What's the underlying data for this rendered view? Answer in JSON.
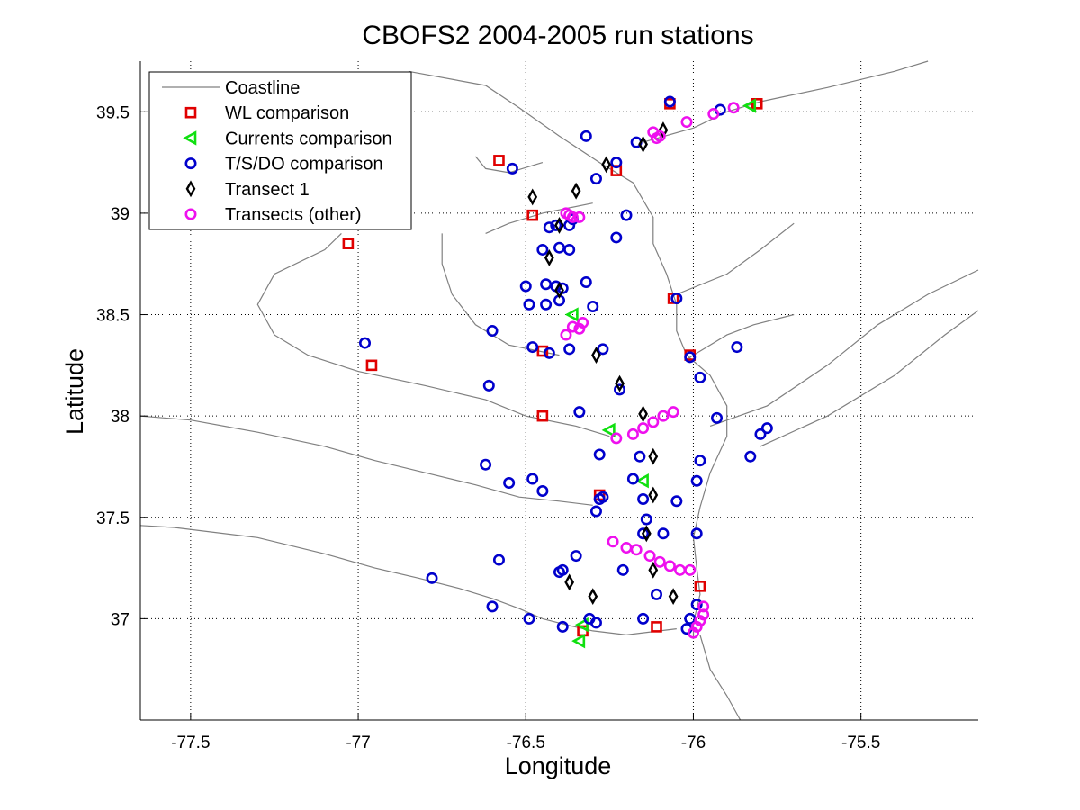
{
  "chart_data": {
    "type": "scatter",
    "title": "CBOFS2 2004-2005 run stations",
    "xlabel": "Longitude",
    "ylabel": "Latitude",
    "xlim": [
      -77.65,
      -75.15
    ],
    "ylim": [
      36.5,
      39.75
    ],
    "xticks": [
      -77.5,
      -77,
      -76.5,
      -76,
      -75.5
    ],
    "xtick_labels": [
      "-77.5",
      "-77",
      "-76.5",
      "-76",
      "-75.5"
    ],
    "yticks": [
      37,
      37.5,
      38,
      38.5,
      39,
      39.5
    ],
    "ytick_labels": [
      "37",
      "37.5",
      "38",
      "38.5",
      "39",
      "39.5"
    ],
    "grid": true,
    "grid_style": "dotted",
    "legend_position": "top-left",
    "legend": [
      "Coastline",
      "WL comparison",
      "Currents comparison",
      "T/S/DO comparison",
      "Transect 1",
      "Transects (other)"
    ],
    "series": [
      {
        "name": "Coastline",
        "marker": "line",
        "color": "#808080",
        "polylines": [
          [
            [
              -76.85,
              39.7
            ],
            [
              -76.62,
              39.63
            ],
            [
              -76.52,
              39.52
            ],
            [
              -76.4,
              39.38
            ],
            [
              -76.28,
              39.25
            ],
            [
              -76.18,
              39.15
            ],
            [
              -76.12,
              38.98
            ],
            [
              -76.12,
              38.85
            ],
            [
              -76.08,
              38.7
            ],
            [
              -76.05,
              38.55
            ],
            [
              -76.05,
              38.42
            ],
            [
              -76.02,
              38.3
            ],
            [
              -75.95,
              38.2
            ],
            [
              -75.9,
              38.05
            ],
            [
              -75.9,
              37.9
            ],
            [
              -75.95,
              37.72
            ],
            [
              -75.98,
              37.55
            ],
            [
              -76.0,
              37.4
            ],
            [
              -75.99,
              37.25
            ],
            [
              -75.98,
              37.12
            ],
            [
              -76.0,
              36.98
            ],
            [
              -76.0,
              36.9
            ]
          ],
          [
            [
              -75.98,
              36.92
            ],
            [
              -75.95,
              36.75
            ],
            [
              -75.9,
              36.62
            ],
            [
              -75.86,
              36.5
            ]
          ],
          [
            [
              -76.05,
              36.95
            ],
            [
              -76.2,
              36.92
            ],
            [
              -76.3,
              36.94
            ],
            [
              -76.38,
              36.97
            ],
            [
              -76.45,
              37.0
            ],
            [
              -76.52,
              37.05
            ],
            [
              -76.6,
              37.1
            ],
            [
              -76.7,
              37.15
            ],
            [
              -76.82,
              37.2
            ],
            [
              -76.95,
              37.25
            ],
            [
              -77.1,
              37.32
            ],
            [
              -77.3,
              37.4
            ],
            [
              -77.55,
              37.45
            ],
            [
              -77.65,
              37.46
            ]
          ],
          [
            [
              -76.3,
              37.56
            ],
            [
              -76.4,
              37.58
            ],
            [
              -76.52,
              37.6
            ],
            [
              -76.65,
              37.66
            ],
            [
              -76.8,
              37.72
            ],
            [
              -76.95,
              37.78
            ],
            [
              -77.1,
              37.85
            ],
            [
              -77.3,
              37.92
            ],
            [
              -77.5,
              37.98
            ],
            [
              -77.65,
              38.0
            ]
          ],
          [
            [
              -76.25,
              37.9
            ],
            [
              -76.35,
              37.95
            ],
            [
              -76.5,
              38.0
            ],
            [
              -76.62,
              38.08
            ],
            [
              -76.8,
              38.15
            ],
            [
              -77.0,
              38.22
            ],
            [
              -77.15,
              38.3
            ],
            [
              -77.25,
              38.4
            ],
            [
              -77.3,
              38.55
            ],
            [
              -77.25,
              38.7
            ],
            [
              -77.1,
              38.82
            ],
            [
              -77.05,
              38.9
            ]
          ],
          [
            [
              -76.4,
              38.3
            ],
            [
              -76.55,
              38.35
            ],
            [
              -76.65,
              38.45
            ],
            [
              -76.72,
              38.6
            ],
            [
              -76.75,
              38.75
            ],
            [
              -76.75,
              38.9
            ]
          ],
          [
            [
              -76.3,
              39.05
            ],
            [
              -76.45,
              39.0
            ],
            [
              -76.55,
              38.95
            ],
            [
              -76.62,
              38.9
            ]
          ],
          [
            [
              -76.45,
              39.25
            ],
            [
              -76.55,
              39.2
            ],
            [
              -76.62,
              39.22
            ],
            [
              -76.65,
              39.28
            ]
          ],
          [
            [
              -76.05,
              38.6
            ],
            [
              -75.9,
              38.7
            ],
            [
              -75.8,
              38.82
            ],
            [
              -75.7,
              38.95
            ]
          ],
          [
            [
              -76.02,
              38.28
            ],
            [
              -75.9,
              38.4
            ],
            [
              -75.82,
              38.45
            ],
            [
              -75.7,
              38.5
            ]
          ],
          [
            [
              -76.15,
              39.35
            ],
            [
              -76.0,
              39.42
            ],
            [
              -75.9,
              39.5
            ],
            [
              -75.8,
              39.55
            ],
            [
              -75.6,
              39.62
            ],
            [
              -75.4,
              39.7
            ],
            [
              -75.3,
              39.75
            ]
          ],
          [
            [
              -75.95,
              37.95
            ],
            [
              -75.78,
              38.05
            ],
            [
              -75.6,
              38.25
            ],
            [
              -75.45,
              38.45
            ],
            [
              -75.3,
              38.6
            ],
            [
              -75.15,
              38.72
            ]
          ],
          [
            [
              -75.8,
              37.85
            ],
            [
              -75.6,
              38.0
            ],
            [
              -75.4,
              38.2
            ],
            [
              -75.25,
              38.4
            ],
            [
              -75.15,
              38.52
            ]
          ]
        ]
      },
      {
        "name": "WL comparison",
        "marker": "square",
        "color": "#e00000",
        "points": [
          [
            -77.03,
            38.85
          ],
          [
            -76.96,
            38.25
          ],
          [
            -76.58,
            39.26
          ],
          [
            -76.48,
            38.99
          ],
          [
            -76.45,
            38.32
          ],
          [
            -76.45,
            38.0
          ],
          [
            -76.28,
            37.61
          ],
          [
            -76.33,
            36.94
          ],
          [
            -76.23,
            39.21
          ],
          [
            -76.07,
            39.54
          ],
          [
            -76.06,
            38.58
          ],
          [
            -76.01,
            38.3
          ],
          [
            -75.98,
            37.16
          ],
          [
            -76.11,
            36.96
          ],
          [
            -75.81,
            39.54
          ]
        ]
      },
      {
        "name": "Currents comparison",
        "marker": "triangle-left",
        "color": "#10e010",
        "points": [
          [
            -75.83,
            39.53
          ],
          [
            -76.36,
            38.5
          ],
          [
            -76.25,
            37.93
          ],
          [
            -76.15,
            37.68
          ],
          [
            -76.33,
            36.97
          ],
          [
            -76.34,
            36.89
          ]
        ]
      },
      {
        "name": "T/S/DO comparison",
        "marker": "circle",
        "color": "#0000cc",
        "points": [
          [
            -76.07,
            39.55
          ],
          [
            -75.92,
            39.51
          ],
          [
            -76.32,
            39.38
          ],
          [
            -76.17,
            39.35
          ],
          [
            -76.54,
            39.22
          ],
          [
            -76.29,
            39.17
          ],
          [
            -76.23,
            39.25
          ],
          [
            -76.41,
            38.94
          ],
          [
            -76.43,
            38.93
          ],
          [
            -76.36,
            38.97
          ],
          [
            -76.37,
            38.94
          ],
          [
            -76.2,
            38.99
          ],
          [
            -76.45,
            38.82
          ],
          [
            -76.4,
            38.83
          ],
          [
            -76.37,
            38.82
          ],
          [
            -76.23,
            38.88
          ],
          [
            -76.5,
            38.64
          ],
          [
            -76.44,
            38.65
          ],
          [
            -76.41,
            38.64
          ],
          [
            -76.39,
            38.63
          ],
          [
            -76.32,
            38.66
          ],
          [
            -76.49,
            38.55
          ],
          [
            -76.44,
            38.55
          ],
          [
            -76.4,
            38.57
          ],
          [
            -76.3,
            38.54
          ],
          [
            -76.05,
            38.58
          ],
          [
            -76.6,
            38.42
          ],
          [
            -76.48,
            38.34
          ],
          [
            -76.43,
            38.31
          ],
          [
            -76.37,
            38.33
          ],
          [
            -76.27,
            38.33
          ],
          [
            -76.98,
            38.36
          ],
          [
            -76.61,
            38.15
          ],
          [
            -76.22,
            38.13
          ],
          [
            -76.01,
            38.29
          ],
          [
            -75.98,
            38.19
          ],
          [
            -75.87,
            38.34
          ],
          [
            -76.34,
            38.02
          ],
          [
            -75.93,
            37.99
          ],
          [
            -75.78,
            37.94
          ],
          [
            -75.8,
            37.91
          ],
          [
            -76.62,
            37.76
          ],
          [
            -76.55,
            37.67
          ],
          [
            -76.48,
            37.69
          ],
          [
            -76.45,
            37.63
          ],
          [
            -76.28,
            37.81
          ],
          [
            -76.28,
            37.59
          ],
          [
            -76.27,
            37.6
          ],
          [
            -76.29,
            37.53
          ],
          [
            -76.18,
            37.69
          ],
          [
            -76.16,
            37.8
          ],
          [
            -76.15,
            37.59
          ],
          [
            -76.14,
            37.49
          ],
          [
            -76.05,
            37.58
          ],
          [
            -75.98,
            37.78
          ],
          [
            -75.99,
            37.68
          ],
          [
            -75.83,
            37.8
          ],
          [
            -76.15,
            37.42
          ],
          [
            -76.09,
            37.42
          ],
          [
            -75.99,
            37.42
          ],
          [
            -76.35,
            37.31
          ],
          [
            -76.4,
            37.23
          ],
          [
            -76.39,
            37.24
          ],
          [
            -76.21,
            37.24
          ],
          [
            -76.58,
            37.29
          ],
          [
            -76.78,
            37.2
          ],
          [
            -76.6,
            37.06
          ],
          [
            -76.49,
            37.0
          ],
          [
            -76.39,
            36.96
          ],
          [
            -76.31,
            37.0
          ],
          [
            -76.29,
            36.98
          ],
          [
            -76.15,
            37.0
          ],
          [
            -76.11,
            37.12
          ],
          [
            -75.99,
            37.07
          ],
          [
            -76.01,
            37.0
          ],
          [
            -76.02,
            36.95
          ]
        ]
      },
      {
        "name": "Transect 1",
        "marker": "diamond",
        "color": "#000000",
        "points": [
          [
            -76.09,
            39.41
          ],
          [
            -76.15,
            39.34
          ],
          [
            -76.26,
            39.24
          ],
          [
            -76.35,
            39.11
          ],
          [
            -76.48,
            39.08
          ],
          [
            -76.4,
            38.94
          ],
          [
            -76.43,
            38.78
          ],
          [
            -76.4,
            38.62
          ],
          [
            -76.29,
            38.3
          ],
          [
            -76.22,
            38.16
          ],
          [
            -76.15,
            38.01
          ],
          [
            -76.12,
            37.8
          ],
          [
            -76.12,
            37.61
          ],
          [
            -76.14,
            37.42
          ],
          [
            -76.12,
            37.24
          ],
          [
            -76.37,
            37.18
          ],
          [
            -76.3,
            37.11
          ],
          [
            -76.06,
            37.11
          ]
        ]
      },
      {
        "name": "Transects (other)",
        "marker": "circle",
        "color": "#ee10ee",
        "points": [
          [
            -75.88,
            39.52
          ],
          [
            -75.94,
            39.49
          ],
          [
            -76.02,
            39.45
          ],
          [
            -76.12,
            39.4
          ],
          [
            -76.1,
            39.38
          ],
          [
            -76.11,
            39.37
          ],
          [
            -76.38,
            39.0
          ],
          [
            -76.36,
            38.98
          ],
          [
            -76.34,
            38.98
          ],
          [
            -76.37,
            38.99
          ],
          [
            -76.36,
            38.44
          ],
          [
            -76.34,
            38.43
          ],
          [
            -76.33,
            38.46
          ],
          [
            -76.38,
            38.4
          ],
          [
            -76.23,
            37.89
          ],
          [
            -76.18,
            37.91
          ],
          [
            -76.15,
            37.94
          ],
          [
            -76.12,
            37.97
          ],
          [
            -76.09,
            38.0
          ],
          [
            -76.06,
            38.02
          ],
          [
            -76.24,
            37.38
          ],
          [
            -76.2,
            37.35
          ],
          [
            -76.17,
            37.34
          ],
          [
            -76.13,
            37.31
          ],
          [
            -76.1,
            37.28
          ],
          [
            -76.07,
            37.26
          ],
          [
            -76.04,
            37.24
          ],
          [
            -76.01,
            37.24
          ],
          [
            -75.97,
            37.06
          ],
          [
            -75.97,
            37.02
          ],
          [
            -75.98,
            36.99
          ],
          [
            -75.99,
            36.96
          ],
          [
            -76.0,
            36.93
          ]
        ]
      }
    ]
  }
}
